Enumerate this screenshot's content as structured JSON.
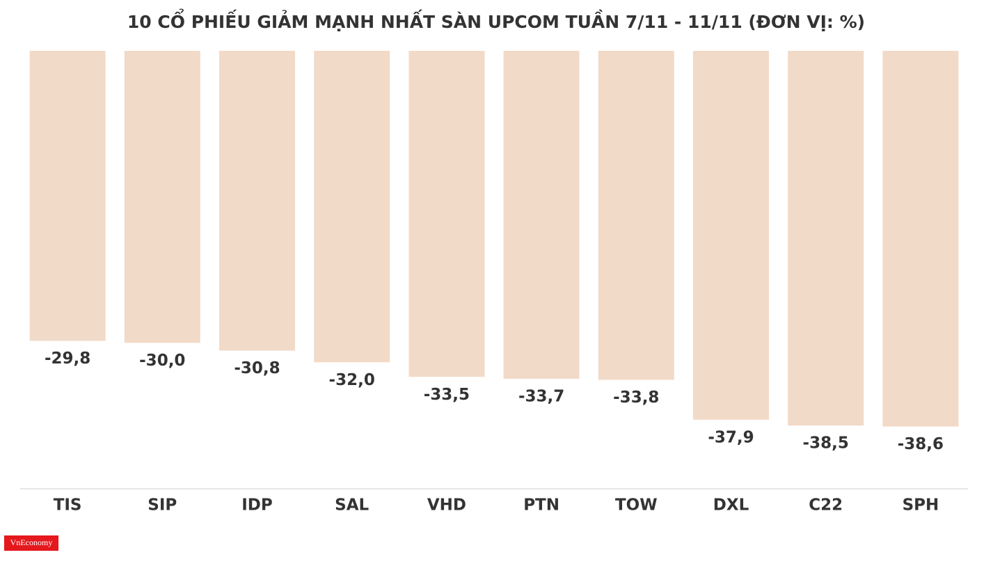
{
  "chart_data": {
    "type": "bar",
    "title": "10 CỔ PHIẾU GIẢM MẠNH NHẤT SÀN UPCOM TUẦN 7/11 - 11/11 (ĐƠN VỊ: %)",
    "categories": [
      "TIS",
      "SIP",
      "IDP",
      "SAL",
      "VHD",
      "PTN",
      "TOW",
      "DXL",
      "C22",
      "SPH"
    ],
    "values": [
      -29.8,
      -30.0,
      -30.8,
      -32.0,
      -33.5,
      -33.7,
      -33.8,
      -37.9,
      -38.5,
      -38.6
    ],
    "value_labels": [
      "-29,8",
      "-30,0",
      "-30,8",
      "-32,0",
      "-33,5",
      "-33,7",
      "-33,8",
      "-37,9",
      "-38,5",
      "-38,6"
    ],
    "color": "#f2dac8",
    "ylim": [
      -45,
      0
    ],
    "grid": false
  },
  "logo": "VnEconomy"
}
